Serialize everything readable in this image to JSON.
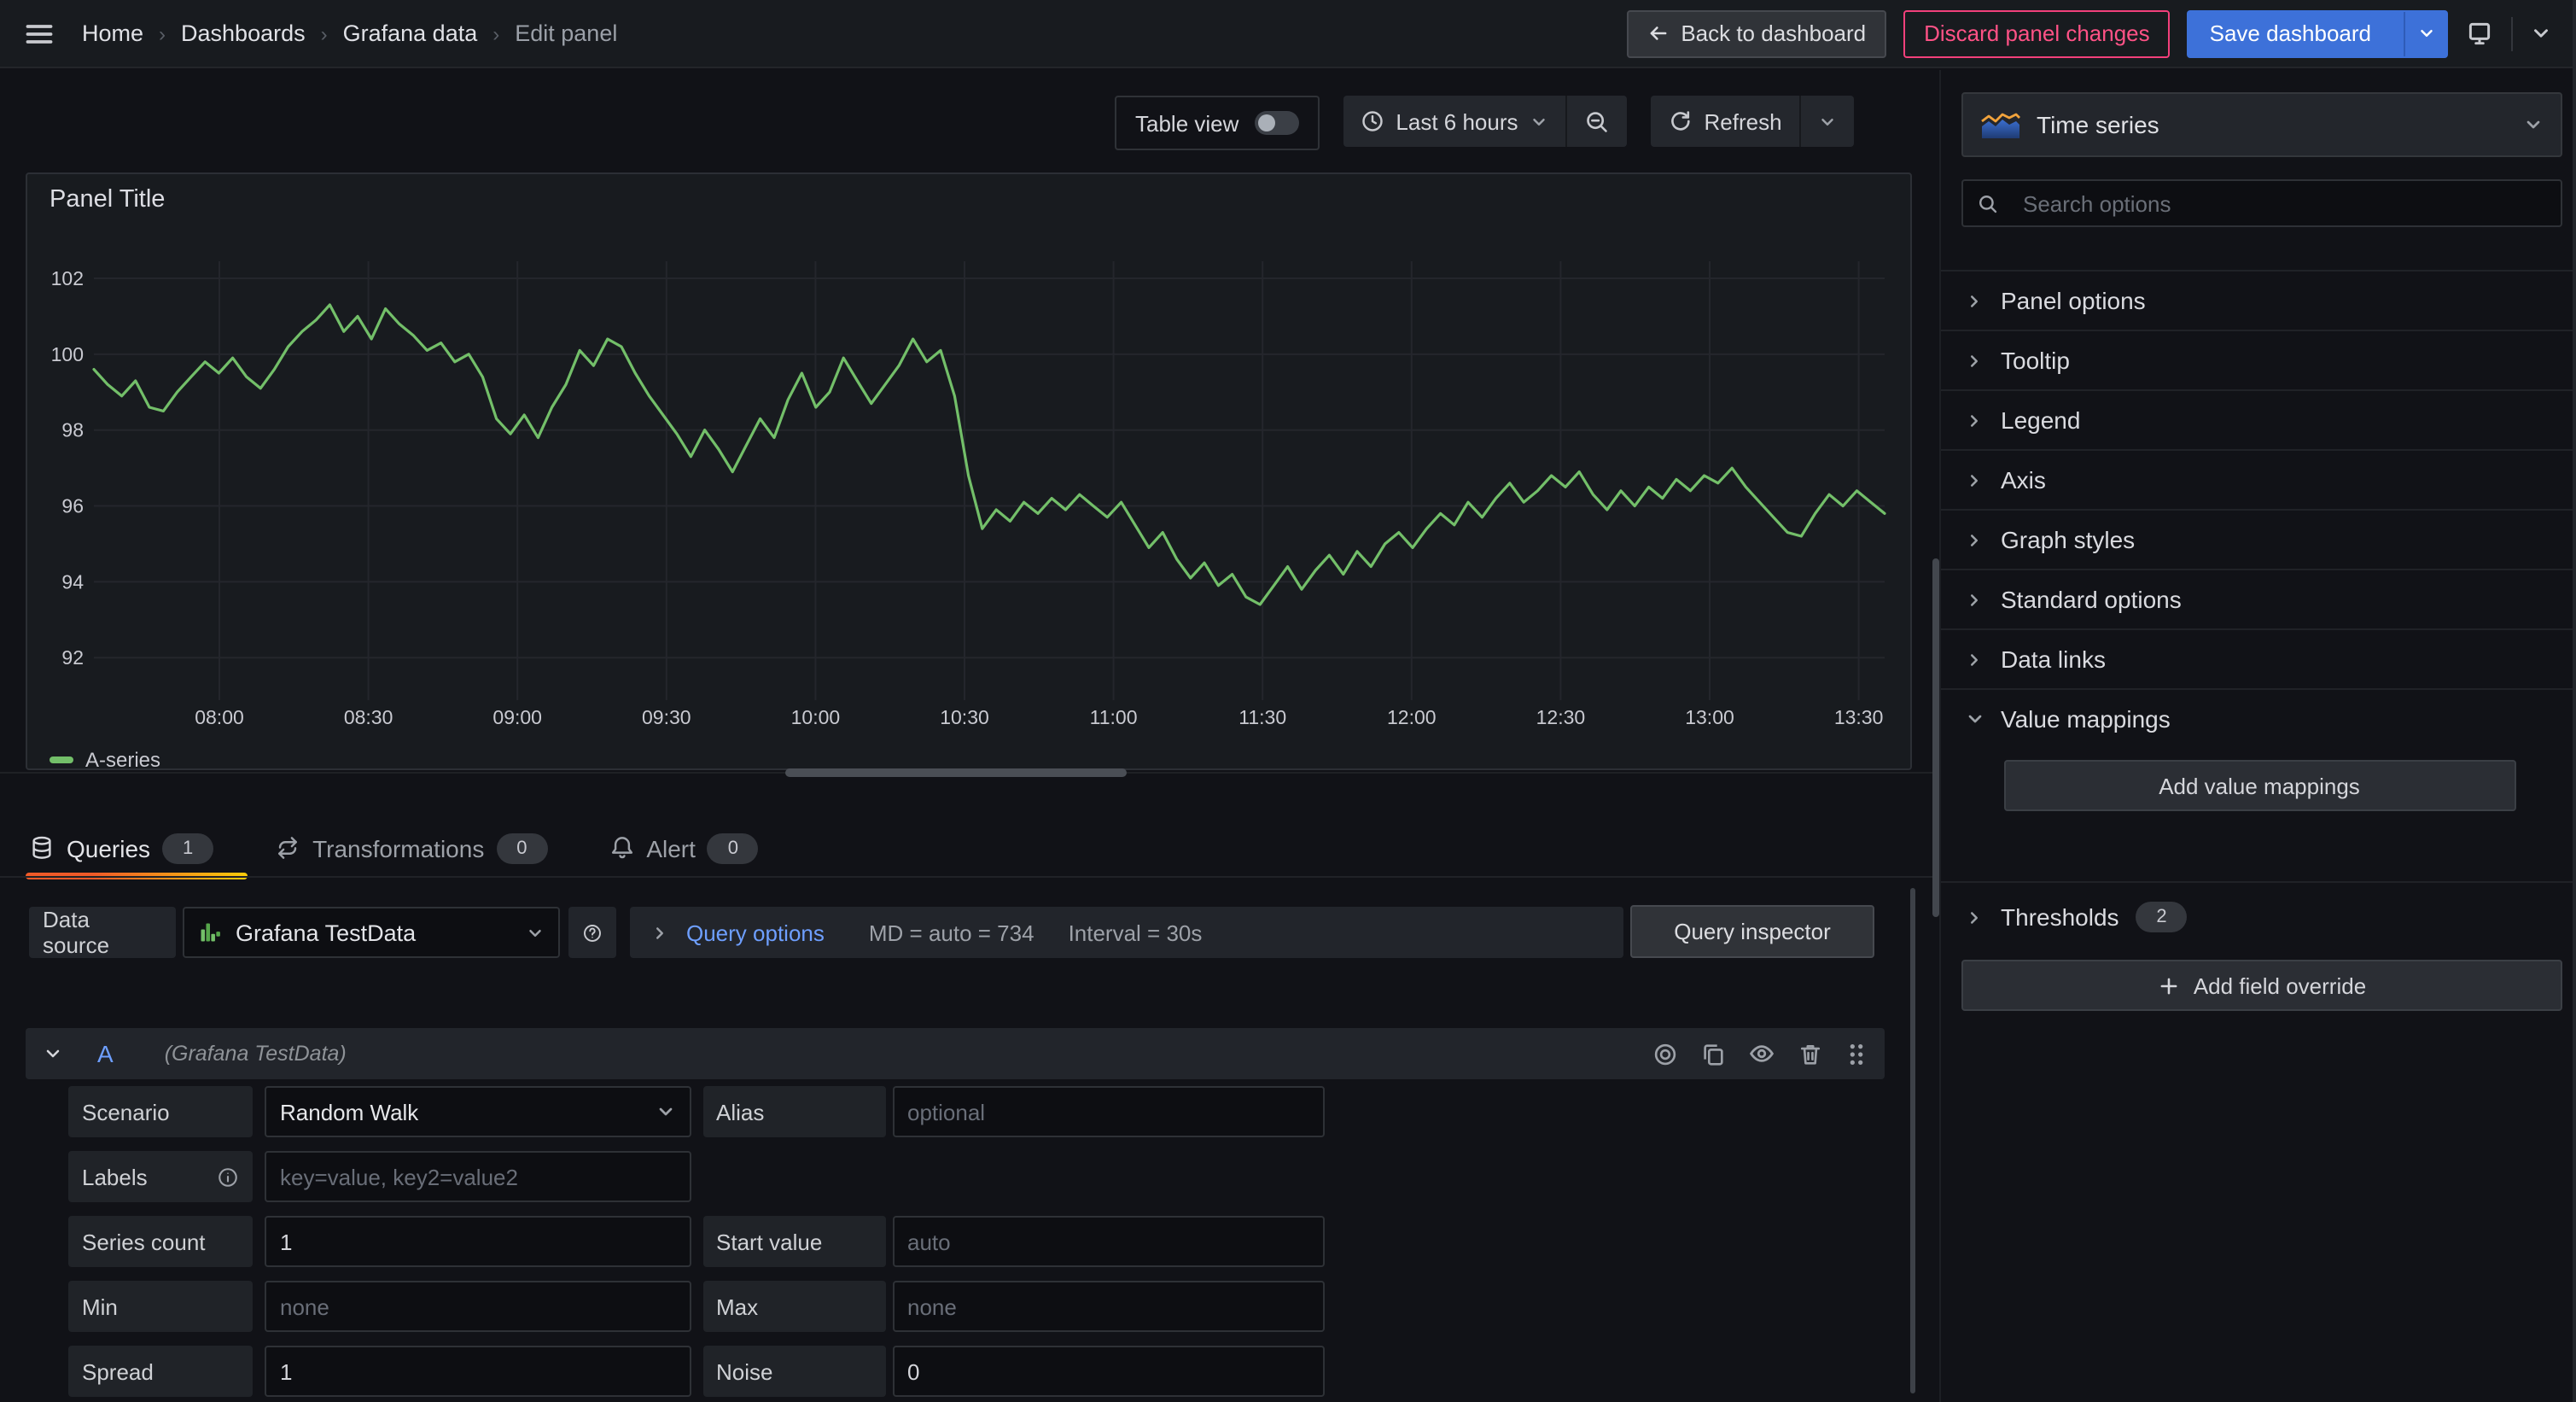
{
  "nav": {
    "breadcrumbs": [
      {
        "label": "Home",
        "current": false
      },
      {
        "label": "Dashboards",
        "current": false
      },
      {
        "label": "Grafana data",
        "current": false
      },
      {
        "label": "Edit panel",
        "current": true
      }
    ],
    "back_button": "Back to dashboard",
    "discard_button": "Discard panel changes",
    "save_button": "Save dashboard"
  },
  "toolbar": {
    "table_view_label": "Table view",
    "table_view_on": false,
    "time_range": "Last 6 hours",
    "refresh_label": "Refresh"
  },
  "panel": {
    "title": "Panel Title",
    "legend": [
      {
        "label": "A-series",
        "color": "#73bf69"
      }
    ]
  },
  "chart_data": {
    "type": "line",
    "title": "Panel Title",
    "series": [
      {
        "name": "A-series",
        "color": "#73bf69",
        "values": [
          99.6,
          99.2,
          98.9,
          99.3,
          98.6,
          98.5,
          99.0,
          99.4,
          99.8,
          99.5,
          99.9,
          99.4,
          99.1,
          99.6,
          100.2,
          100.6,
          100.9,
          101.3,
          100.6,
          101.0,
          100.4,
          101.2,
          100.8,
          100.5,
          100.1,
          100.3,
          99.8,
          100.0,
          99.4,
          98.3,
          97.9,
          98.4,
          97.8,
          98.6,
          99.2,
          100.1,
          99.7,
          100.4,
          100.2,
          99.5,
          98.9,
          98.4,
          97.9,
          97.3,
          98.0,
          97.5,
          96.9,
          97.6,
          98.3,
          97.8,
          98.8,
          99.5,
          98.6,
          99.0,
          99.9,
          99.3,
          98.7,
          99.2,
          99.7,
          100.4,
          99.8,
          100.1,
          98.9,
          96.8,
          95.4,
          95.9,
          95.6,
          96.1,
          95.8,
          96.2,
          95.9,
          96.3,
          96.0,
          95.7,
          96.1,
          95.5,
          94.9,
          95.3,
          94.6,
          94.1,
          94.5,
          93.9,
          94.2,
          93.6,
          93.4,
          93.9,
          94.4,
          93.8,
          94.3,
          94.7,
          94.2,
          94.8,
          94.4,
          95.0,
          95.3,
          94.9,
          95.4,
          95.8,
          95.5,
          96.1,
          95.7,
          96.2,
          96.6,
          96.1,
          96.4,
          96.8,
          96.5,
          96.9,
          96.3,
          95.9,
          96.4,
          96.0,
          96.5,
          96.2,
          96.7,
          96.4,
          96.8,
          96.6,
          97.0,
          96.5,
          96.1,
          95.7,
          95.3,
          95.2,
          95.8,
          96.3,
          96.0,
          96.4,
          96.1,
          95.8
        ]
      }
    ],
    "x_tick_labels": [
      "08:00",
      "08:30",
      "09:00",
      "09:30",
      "10:00",
      "10:30",
      "11:00",
      "11:30",
      "12:00",
      "12:30",
      "13:00",
      "13:30"
    ],
    "y_tick_labels": [
      "102",
      "100",
      "98",
      "96",
      "94",
      "92"
    ],
    "y_ticks": [
      102,
      100,
      98,
      96,
      94,
      92
    ],
    "ylim": [
      90.88,
      102.45
    ],
    "grid": true,
    "legend_position": "bottom-left"
  },
  "tabs": [
    {
      "label": "Queries",
      "count": "1",
      "icon": "database",
      "active": true
    },
    {
      "label": "Transformations",
      "count": "0",
      "icon": "process",
      "active": false
    },
    {
      "label": "Alert",
      "count": "0",
      "icon": "bell",
      "active": false
    }
  ],
  "query_editor": {
    "datasource_label": "Data source",
    "datasource_name": "Grafana TestData",
    "query_options_label": "Query options",
    "query_options_meta": [
      "MD = auto = 734",
      "Interval = 30s"
    ],
    "inspector_button": "Query inspector"
  },
  "query": {
    "ref_id": "A",
    "datasource_hint": "(Grafana TestData)",
    "form_rows": [
      [
        {
          "label": "Scenario",
          "type": "select",
          "value": "Random Walk"
        },
        {
          "label": "Alias",
          "type": "input",
          "placeholder": "optional"
        }
      ],
      [
        {
          "label": "Labels",
          "info": true,
          "type": "input",
          "placeholder": "key=value, key2=value2"
        }
      ],
      [
        {
          "label": "Series count",
          "type": "input",
          "value": "1"
        },
        {
          "label": "Start value",
          "type": "input",
          "placeholder": "auto"
        }
      ],
      [
        {
          "label": "Min",
          "type": "input",
          "placeholder": "none"
        },
        {
          "label": "Max",
          "type": "input",
          "placeholder": "none"
        }
      ],
      [
        {
          "label": "Spread",
          "type": "input",
          "value": "1"
        },
        {
          "label": "Noise",
          "type": "input",
          "value": "0"
        }
      ]
    ]
  },
  "options_pane": {
    "viz_name": "Time series",
    "search_placeholder": "Search options",
    "sections": [
      {
        "label": "Panel options",
        "expanded": false
      },
      {
        "label": "Tooltip",
        "expanded": false
      },
      {
        "label": "Legend",
        "expanded": false
      },
      {
        "label": "Axis",
        "expanded": false
      },
      {
        "label": "Graph styles",
        "expanded": false
      },
      {
        "label": "Standard options",
        "expanded": false
      },
      {
        "label": "Data links",
        "expanded": false
      },
      {
        "label": "Value mappings",
        "expanded": true,
        "action": "Add value mappings"
      },
      {
        "label": "Thresholds",
        "expanded": false,
        "badge": "2"
      }
    ],
    "add_override_button": "Add field override"
  },
  "colors": {
    "series_green": "#73bf69",
    "primary_blue": "#3d71d9",
    "link_blue": "#6e9fff",
    "danger_pink": "#ff5286",
    "tab_underline_start": "#f05a28",
    "tab_underline_end": "#fbca0a",
    "panel_bg": "#181b1f",
    "page_bg": "#111217"
  }
}
